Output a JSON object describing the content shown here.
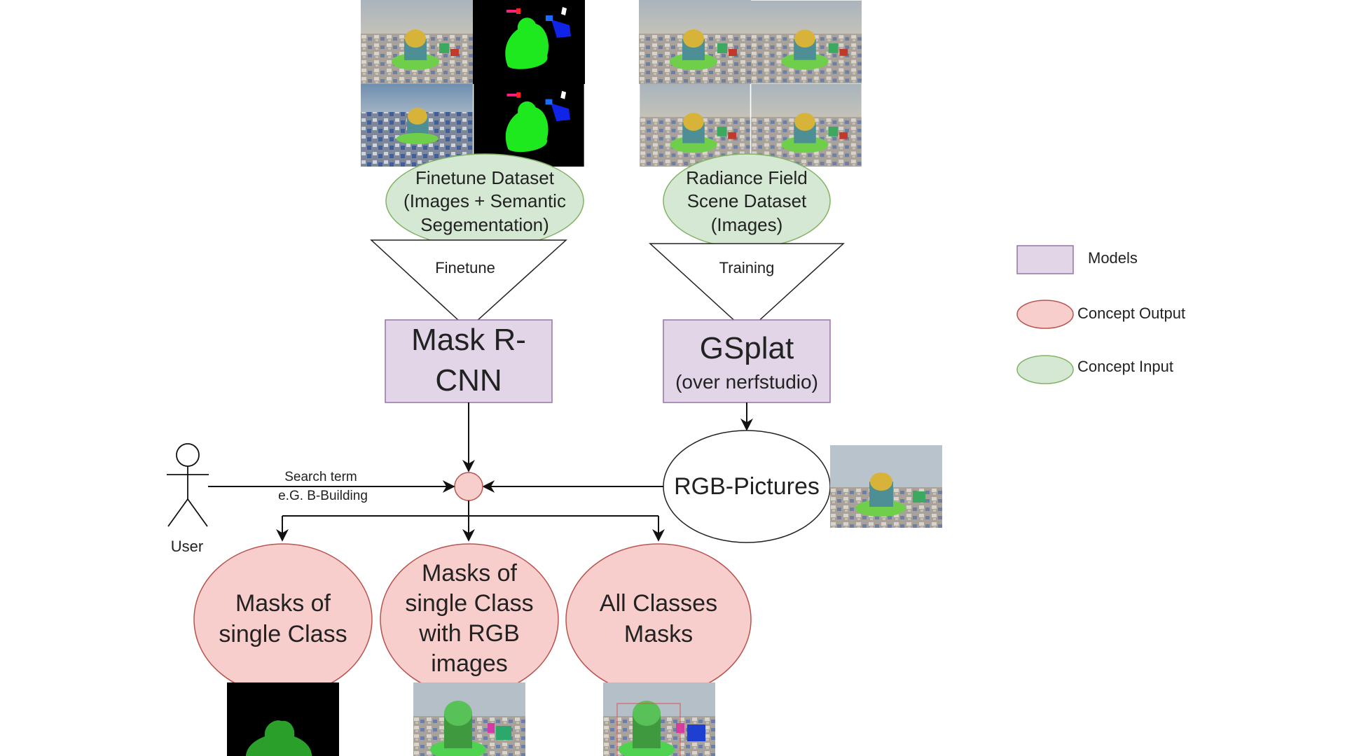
{
  "nodes": {
    "finetune_dataset": {
      "lines": [
        "Finetune Dataset",
        "(Images + Semantic",
        "Segementation)"
      ]
    },
    "radiance_dataset": {
      "lines": [
        "Radiance Field",
        "Scene Dataset",
        "(Images)"
      ]
    },
    "finetune": {
      "label": "Finetune"
    },
    "training": {
      "label": "Training"
    },
    "mask_rcnn": {
      "lines": [
        "Mask R-",
        "CNN"
      ]
    },
    "gsplat": {
      "title": "GSplat",
      "subtitle": "(over nerfstudio)"
    },
    "rgb_pictures": {
      "label": "RGB-Pictures"
    },
    "user": {
      "label": "User"
    },
    "search_term": {
      "lines": [
        "Search term",
        "e.G. B-Building"
      ]
    },
    "out_single": {
      "lines": [
        "Masks of",
        "single Class"
      ]
    },
    "out_single_rgb": {
      "lines": [
        "Masks of",
        "single Class",
        "with RGB",
        "images"
      ]
    },
    "out_all": {
      "lines": [
        "All Classes",
        "Masks"
      ]
    }
  },
  "legend": {
    "models": "Models",
    "concept_output": "Concept Output",
    "concept_input": "Concept Input"
  },
  "colors": {
    "model_fill": "#e1d5e7",
    "model_stroke": "#9673a6",
    "output_fill": "#f8cecc",
    "output_stroke": "#b85450",
    "input_fill": "#d5e8d4",
    "input_stroke": "#82b366",
    "mask_green": "#2aa02a"
  },
  "icons": {
    "user": "stick-figure-icon",
    "scene_images": "rendered-city-scene-thumbnail",
    "segmentation": "semantic-segmentation-thumbnail"
  }
}
